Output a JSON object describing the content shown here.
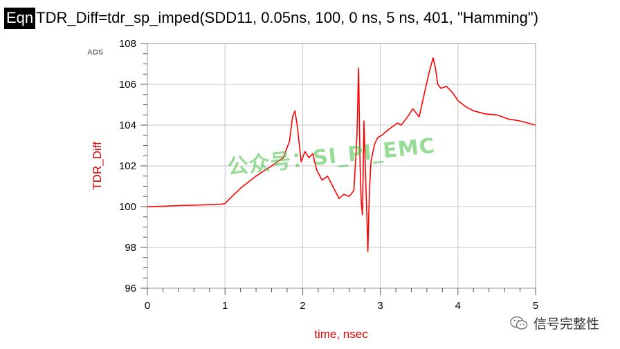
{
  "equation": {
    "tag": "Eqn",
    "text": "TDR_Diff=tdr_sp_imped(SDD11, 0.05ns, 100, 0 ns, 5 ns, 401, \"Hamming\")"
  },
  "plot_badge": "ADS",
  "watermark_text": "公众号：SI_PI_EMC",
  "wechat_label": "信号完整性",
  "chart_data": {
    "type": "line",
    "title": "",
    "xlabel": "time, nsec",
    "ylabel": "TDR_Diff",
    "xlim": [
      0,
      5
    ],
    "ylim": [
      96,
      108
    ],
    "x_ticks": [
      0,
      1,
      2,
      3,
      4,
      5
    ],
    "y_ticks": [
      96,
      98,
      100,
      102,
      104,
      106,
      108
    ],
    "grid": true,
    "line_color": "#ff0000",
    "series": [
      {
        "x": [
          0,
          0.2,
          0.4,
          0.6,
          0.8,
          0.95,
          1.0,
          1.05,
          1.2,
          1.4,
          1.6,
          1.75,
          1.83,
          1.87,
          1.9,
          1.93,
          1.98,
          2.03,
          2.08,
          2.13,
          2.18,
          2.25,
          2.32,
          2.4,
          2.47,
          2.53,
          2.6,
          2.66,
          2.7,
          2.72,
          2.74,
          2.755,
          2.77,
          2.79,
          2.81,
          2.825,
          2.84,
          2.86,
          2.88,
          2.9,
          2.93,
          2.97,
          3.02,
          3.08,
          3.15,
          3.22,
          3.27,
          3.35,
          3.42,
          3.5,
          3.57,
          3.63,
          3.68,
          3.71,
          3.74,
          3.78,
          3.85,
          3.93,
          4.0,
          4.1,
          4.2,
          4.35,
          4.5,
          4.65,
          4.8,
          5.0
        ],
        "y": [
          100.0,
          100.02,
          100.05,
          100.07,
          100.1,
          100.12,
          100.15,
          100.35,
          100.9,
          101.5,
          102.0,
          102.4,
          103.2,
          104.4,
          104.7,
          104.0,
          102.2,
          102.7,
          102.4,
          102.6,
          101.8,
          101.3,
          101.5,
          100.9,
          100.4,
          100.6,
          100.5,
          100.8,
          103.5,
          106.8,
          102.0,
          100.2,
          99.6,
          104.2,
          101.5,
          99.8,
          97.8,
          100.8,
          102.2,
          102.6,
          103.1,
          103.4,
          103.5,
          103.7,
          103.9,
          104.1,
          104.0,
          104.4,
          104.8,
          104.4,
          105.6,
          106.6,
          107.3,
          106.8,
          106.0,
          105.8,
          105.9,
          105.6,
          105.2,
          104.9,
          104.7,
          104.55,
          104.5,
          104.3,
          104.2,
          104.0
        ]
      }
    ]
  }
}
